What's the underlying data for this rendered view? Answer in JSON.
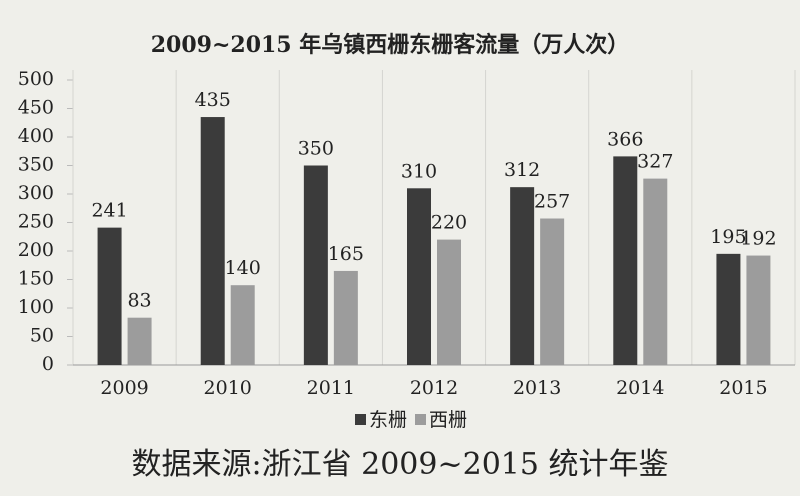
{
  "chart_data": {
    "type": "bar",
    "title": "2009~2015 年乌镇西栅东栅客流量（万人次）",
    "categories": [
      "2009",
      "2010",
      "2011",
      "2012",
      "2013",
      "2014",
      "2015"
    ],
    "series": [
      {
        "name": "东栅",
        "color": "#3b3b3b",
        "values": [
          241,
          435,
          350,
          310,
          312,
          366,
          195
        ]
      },
      {
        "name": "西栅",
        "color": "#9c9c9c",
        "values": [
          83,
          140,
          165,
          220,
          257,
          327,
          192
        ]
      }
    ],
    "ylim": [
      0,
      500
    ],
    "yticks": [
      0,
      50,
      100,
      150,
      200,
      250,
      300,
      350,
      400,
      450,
      500
    ],
    "source": "数据来源:浙江省 2009~2015 统计年鉴"
  }
}
